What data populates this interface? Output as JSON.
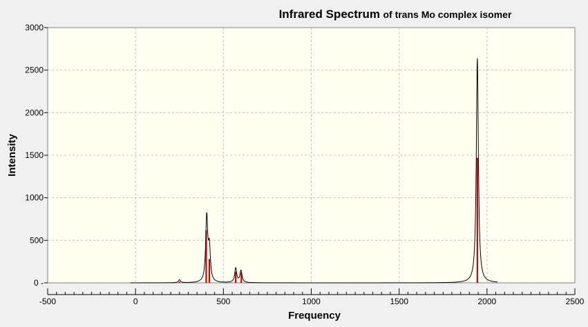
{
  "chart_data": {
    "type": "line",
    "title_main": "Infrared Spectrum",
    "title_sub": "of trans Mo complex isomer",
    "xlabel": "Frequency",
    "ylabel": "Intensity",
    "xlim": [
      -500,
      2500
    ],
    "ylim": [
      0,
      3000
    ],
    "x_ticks": [
      -500,
      0,
      500,
      1000,
      1500,
      2000,
      2500
    ],
    "y_ticks": [
      0,
      500,
      1000,
      1500,
      2000,
      2500,
      3000
    ],
    "x_tick_labels": [
      "-500",
      "0",
      "500",
      "1000",
      "1500",
      "2000",
      "2500"
    ],
    "y_tick_labels": [
      "0",
      "500",
      "1000",
      "1500",
      "2000",
      "2500",
      "3000"
    ],
    "grid": true,
    "colors": {
      "plot_background": "#fffff2",
      "window_background": "#f0f0f0",
      "spectrum_line": "#000000",
      "stick_lines": "#cc0000",
      "grid": "#c0c0c0"
    },
    "series": [
      {
        "kind": "broadened-spectrum",
        "x_range": [
          -30,
          2060
        ],
        "peaks": [
          {
            "x": 250,
            "y": 35
          },
          {
            "x": 405,
            "y": 760
          },
          {
            "x": 420,
            "y": 380
          },
          {
            "x": 570,
            "y": 170
          },
          {
            "x": 600,
            "y": 140
          },
          {
            "x": 1945,
            "y": 2640
          }
        ]
      },
      {
        "kind": "sticks",
        "sticks": [
          {
            "x": 250,
            "y": 15
          },
          {
            "x": 402,
            "y": 620
          },
          {
            "x": 420,
            "y": 280
          },
          {
            "x": 570,
            "y": 130
          },
          {
            "x": 602,
            "y": 120
          },
          {
            "x": 1945,
            "y": 1470
          }
        ]
      }
    ]
  }
}
